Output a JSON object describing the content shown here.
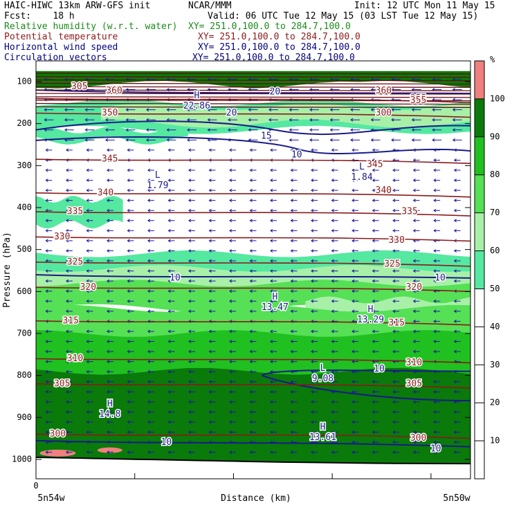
{
  "header": {
    "title_left": "HAIC-HIWC 13km ARW-GFS init",
    "title_center": "NCAR/MMM",
    "init": "Init: 12 UTC Mon 11 May 15",
    "fcst": "Fcst:    18 h",
    "valid": "Valid: 06 UTC Tue 12 May 15 (03 LST Tue 12 May 15)",
    "rows": [
      {
        "label": "Relative humidity (w.r.t. water)",
        "xy": "XY= 251.0,100.0 to 284.7,100.0",
        "color": "#1a8a1a"
      },
      {
        "label": "Potential temperature",
        "xy": "XY= 251.0,100.0 to 284.7,100.0",
        "color": "#8b1a1a"
      },
      {
        "label": "Horizontal wind speed",
        "xy": "XY= 251.0,100.0 to 284.7,100.0",
        "color": "#000080"
      },
      {
        "label": "Circulation vectors",
        "xy": "XY= 251.0,100.0 to 284.7,100.0",
        "color": "#000080"
      }
    ]
  },
  "chart_data": {
    "type": "heatmap",
    "xlabel": "Distance (km)",
    "ylabel": "Pressure (hPa)",
    "x_left_label": "5n54w",
    "x_right_label": "5n50w",
    "x_zero_label": "0",
    "y_ticks": [
      100,
      200,
      300,
      400,
      500,
      600,
      700,
      800,
      900,
      1000
    ],
    "ylim": [
      1025,
      75
    ],
    "colorbar": {
      "unit": "%",
      "levels": [
        10,
        20,
        30,
        40,
        50,
        60,
        70,
        80,
        90,
        100
      ],
      "colors": [
        {
          "from": 0,
          "to": 50,
          "color": "#ffffff"
        },
        {
          "from": 50,
          "to": 60,
          "color": "#55e8a0"
        },
        {
          "from": 60,
          "to": 70,
          "color": "#a8f0a8"
        },
        {
          "from": 70,
          "to": 80,
          "color": "#55e055"
        },
        {
          "from": 80,
          "to": 90,
          "color": "#20c020"
        },
        {
          "from": 90,
          "to": 100,
          "color": "#0a7a0a"
        },
        {
          "from": 100,
          "to": 110,
          "color": "#f08080"
        }
      ]
    },
    "theta_contours": [
      {
        "value": 300,
        "p": 940,
        "label_x": 0.05
      },
      {
        "value": 305,
        "p": 820,
        "label_x": 0.06
      },
      {
        "value": 310,
        "p": 760,
        "label_x": 0.09
      },
      {
        "value": 315,
        "p": 670,
        "label_x": 0.08
      },
      {
        "value": 320,
        "p": 590,
        "label_x": 0.12
      },
      {
        "value": 325,
        "p": 530,
        "label_x": 0.09
      },
      {
        "value": 330,
        "p": 470,
        "label_x": 0.06
      },
      {
        "value": 335,
        "p": 410,
        "label_x": 0.09
      },
      {
        "value": 340,
        "p": 365,
        "label_x": 0.16
      },
      {
        "value": 345,
        "p": 285,
        "label_x": 0.17
      },
      {
        "value": 350,
        "p": 175,
        "label_x": 0.17
      },
      {
        "value": 355,
        "p": 140,
        "label_x": 0.88
      }
    ],
    "theta_upper_labels": [
      {
        "text": "360",
        "p": 122,
        "x": 0.18
      },
      {
        "text": "305",
        "p": 112,
        "x": 0.1
      },
      {
        "text": "360",
        "p": 122,
        "x": 0.8
      }
    ],
    "theta_extra_labels": [
      {
        "text": "340",
        "p": 360,
        "x": 0.8
      },
      {
        "text": "345",
        "p": 298,
        "x": 0.78
      },
      {
        "text": "335",
        "p": 410,
        "x": 0.86
      },
      {
        "text": "330",
        "p": 478,
        "x": 0.83
      },
      {
        "text": "325",
        "p": 535,
        "x": 0.82
      },
      {
        "text": "320",
        "p": 590,
        "x": 0.87
      },
      {
        "text": "315",
        "p": 675,
        "x": 0.83
      },
      {
        "text": "310",
        "p": 770,
        "x": 0.87
      },
      {
        "text": "305",
        "p": 820,
        "x": 0.87
      },
      {
        "text": "300",
        "p": 950,
        "x": 0.88
      },
      {
        "text": "355",
        "p": 145,
        "x": 0.88
      },
      {
        "text": "300",
        "p": 175,
        "x": 0.8
      }
    ],
    "wind_labels": [
      {
        "text": "20",
        "p": 125,
        "x": 0.55
      },
      {
        "text": "20",
        "p": 175,
        "x": 0.45
      },
      {
        "text": "15",
        "p": 230,
        "x": 0.53
      },
      {
        "text": "10",
        "p": 275,
        "x": 0.6
      },
      {
        "text": "10",
        "p": 568,
        "x": 0.32
      },
      {
        "text": "10",
        "p": 568,
        "x": 0.93
      },
      {
        "text": "10",
        "p": 785,
        "x": 0.79
      },
      {
        "text": "10",
        "p": 960,
        "x": 0.3
      },
      {
        "text": "10",
        "p": 975,
        "x": 0.92
      }
    ],
    "extrema": [
      {
        "mark": "H",
        "value": "22.86",
        "p": 150,
        "x": 0.37
      },
      {
        "mark": "L",
        "value": "1.79",
        "p": 340,
        "x": 0.28
      },
      {
        "mark": "L",
        "value": "1.84",
        "p": 320,
        "x": 0.75
      },
      {
        "mark": "H",
        "value": "13.47",
        "p": 630,
        "x": 0.55
      },
      {
        "mark": "H",
        "value": "13.29",
        "p": 660,
        "x": 0.77
      },
      {
        "mark": "L",
        "value": "9.08",
        "p": 800,
        "x": 0.66
      },
      {
        "mark": "H",
        "value": "14.8",
        "p": 885,
        "x": 0.17
      },
      {
        "mark": "H",
        "value": "13.61",
        "p": 940,
        "x": 0.66
      }
    ]
  }
}
